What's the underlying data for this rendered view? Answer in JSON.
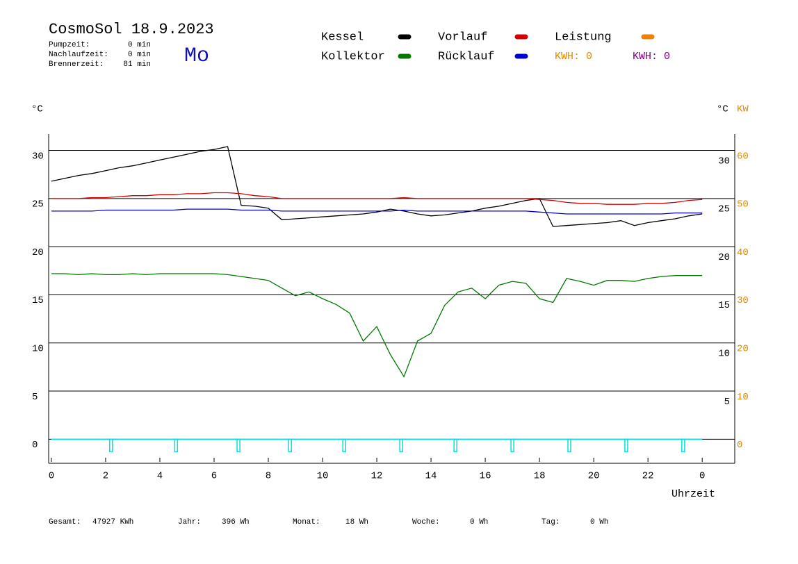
{
  "chart_data": {
    "type": "line",
    "title": "CosmoSol 18.9.2023",
    "weekday": "Mo",
    "stats": [
      {
        "label": "Pumpzeit:",
        "value": "0 min"
      },
      {
        "label": "Nachlaufzeit:",
        "value": "0 min"
      },
      {
        "label": "Brennerzeit:",
        "value": "81 min"
      }
    ],
    "y_label": "°C",
    "y_right_label": "°C",
    "y2_label": "KW",
    "x_label": "Uhrzeit",
    "x": [
      0,
      0.5,
      1,
      1.5,
      2,
      2.5,
      3,
      3.5,
      4,
      4.5,
      5,
      5.5,
      6,
      6.5,
      7,
      7.5,
      8,
      8.5,
      9,
      9.5,
      10,
      10.5,
      11,
      11.5,
      12,
      12.5,
      13,
      13.5,
      14,
      14.5,
      15,
      15.5,
      16,
      16.5,
      17,
      17.5,
      18,
      18.5,
      19,
      19.5,
      20,
      20.5,
      21,
      21.5,
      22,
      22.5,
      23,
      23.5,
      24
    ],
    "series": [
      {
        "name": "Kessel",
        "color": "#000000",
        "values": [
          26.8,
          27.1,
          27.4,
          27.6,
          27.9,
          28.2,
          28.4,
          28.7,
          29.0,
          29.3,
          29.6,
          29.9,
          30.1,
          30.4,
          24.3,
          24.2,
          24.0,
          22.8,
          22.9,
          23.0,
          23.1,
          23.2,
          23.3,
          23.4,
          23.6,
          23.9,
          23.7,
          23.4,
          23.2,
          23.3,
          23.5,
          23.7,
          24.0,
          24.2,
          24.5,
          24.8,
          25.0,
          22.1,
          22.2,
          22.3,
          22.4,
          22.5,
          22.7,
          22.2,
          22.5,
          22.7,
          22.9,
          23.2,
          23.4
        ]
      },
      {
        "name": "Vorlauf",
        "color": "#d40000",
        "values": [
          25.0,
          25.0,
          25.0,
          25.1,
          25.1,
          25.2,
          25.3,
          25.3,
          25.4,
          25.4,
          25.5,
          25.5,
          25.6,
          25.6,
          25.5,
          25.3,
          25.2,
          25.0,
          25.0,
          25.0,
          25.0,
          25.0,
          25.0,
          25.0,
          25.0,
          25.0,
          25.1,
          25.0,
          25.0,
          25.0,
          25.0,
          25.0,
          25.0,
          25.0,
          25.0,
          25.0,
          24.9,
          24.8,
          24.6,
          24.5,
          24.5,
          24.4,
          24.4,
          24.4,
          24.5,
          24.5,
          24.6,
          24.8,
          24.9
        ]
      },
      {
        "name": "Rücklauf",
        "color": "#0000d0",
        "values": [
          23.7,
          23.7,
          23.7,
          23.7,
          23.8,
          23.8,
          23.8,
          23.8,
          23.8,
          23.8,
          23.9,
          23.9,
          23.9,
          23.9,
          23.8,
          23.8,
          23.8,
          23.7,
          23.7,
          23.7,
          23.7,
          23.7,
          23.7,
          23.7,
          23.7,
          23.7,
          23.8,
          23.7,
          23.7,
          23.7,
          23.7,
          23.7,
          23.7,
          23.7,
          23.7,
          23.7,
          23.6,
          23.5,
          23.4,
          23.4,
          23.4,
          23.4,
          23.4,
          23.4,
          23.4,
          23.4,
          23.5,
          23.5,
          23.5
        ]
      },
      {
        "name": "Kollektor",
        "color": "#007800",
        "values": [
          17.2,
          17.2,
          17.1,
          17.2,
          17.1,
          17.1,
          17.2,
          17.1,
          17.2,
          17.2,
          17.2,
          17.2,
          17.2,
          17.1,
          16.9,
          16.7,
          16.5,
          15.7,
          14.9,
          15.3,
          14.6,
          14.0,
          13.1,
          10.2,
          11.7,
          8.8,
          6.5,
          10.2,
          11.0,
          13.9,
          15.3,
          15.7,
          14.6,
          16.0,
          16.4,
          16.2,
          14.6,
          14.2,
          16.7,
          16.4,
          16.0,
          16.5,
          16.5,
          16.4,
          16.7,
          16.9,
          17.0,
          17.0,
          17.0
        ]
      }
    ],
    "legend_extra": [
      {
        "name": "Leistung",
        "color": "#f08000"
      }
    ],
    "kwh": [
      {
        "label": "KWH: 0",
        "color": "#e08a00"
      },
      {
        "label": "KWH: 0",
        "color": "#800080"
      }
    ],
    "pulse_color": "#00e0e0",
    "pulse_base": 0,
    "pulse_depth": -1.3,
    "pulse_x": [
      2.2,
      4.6,
      6.9,
      8.8,
      10.8,
      12.9,
      14.9,
      17.0,
      19.1,
      21.2,
      23.3
    ],
    "xlim": [
      -0.1,
      25.2
    ],
    "xticks": [
      0,
      2,
      4,
      6,
      8,
      10,
      12,
      14,
      16,
      18,
      20,
      22,
      {
        "value": 24,
        "label": "0"
      }
    ],
    "ylim": [
      -2.5,
      31.7
    ],
    "yticks": [
      0,
      5,
      10,
      15,
      20,
      25,
      30
    ],
    "y_right_ticks": [
      5,
      10,
      15,
      20,
      25,
      30
    ],
    "y2lim": [
      -5,
      63.4
    ],
    "y2ticks": [
      0,
      10,
      20,
      30,
      40,
      50,
      60
    ],
    "y2_color": "#e08a00",
    "grid": true,
    "footer": [
      {
        "label": "Gesamt:",
        "value": "47927 KWh"
      },
      {
        "label": "Jahr:",
        "value": "396 Wh"
      },
      {
        "label": "Monat:",
        "value": "18 Wh"
      },
      {
        "label": "Woche:",
        "value": "0 Wh"
      },
      {
        "label": "Tag:",
        "value": "0 Wh"
      }
    ]
  }
}
